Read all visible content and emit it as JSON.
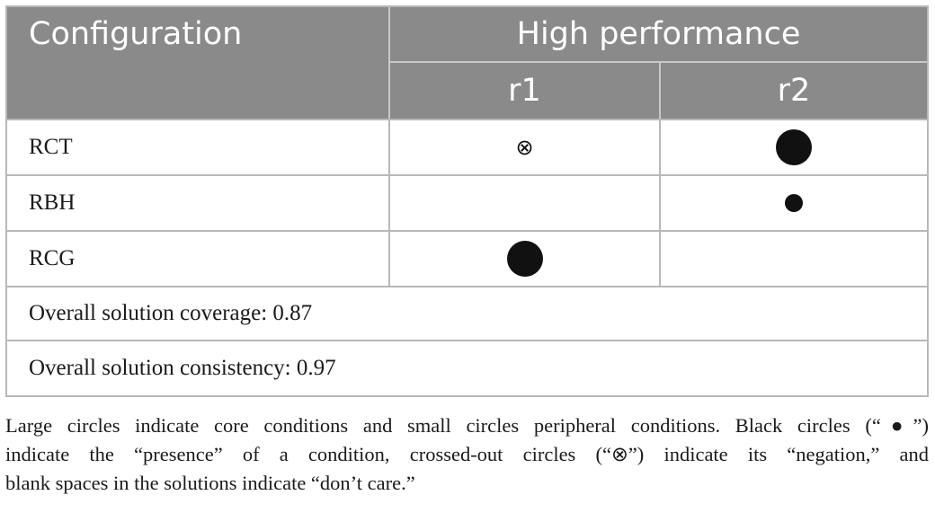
{
  "table": {
    "header": {
      "configuration": "Configuration",
      "group": "High performance",
      "solutions": [
        "r1",
        "r2"
      ]
    },
    "rows": [
      {
        "label": "RCT",
        "r1": "negation",
        "r2": "core-presence"
      },
      {
        "label": "RBH",
        "r1": "",
        "r2": "peripheral-presence"
      },
      {
        "label": "RCG",
        "r1": "core-presence",
        "r2": ""
      }
    ],
    "negation_symbol": "⊗",
    "coverage": "Overall solution coverage: 0.87",
    "consistency": "Overall solution consistency: 0.97"
  },
  "footnote": {
    "line1": "Large circles indicate core conditions and small circles peripheral conditions. Black circles (“●”)",
    "line2": "indicate the “presence” of a condition, crossed-out circles (“⊗”) indicate its “negation,” and",
    "line3": "blank spaces in the solutions indicate “don’t care.”"
  },
  "colors": {
    "header_bg": "#8a8a8a",
    "header_text": "#ffffff",
    "border": "#b8b8b8"
  }
}
